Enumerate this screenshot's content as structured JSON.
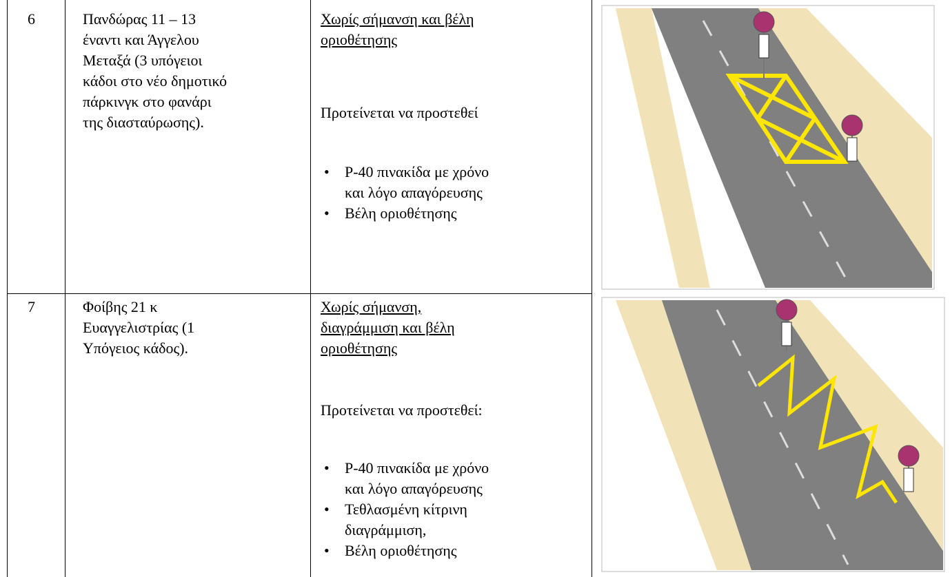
{
  "table": {
    "rows": [
      {
        "number": "6",
        "location": [
          "Πανδώρας 11 – 13",
          "έναντι και Άγγελου",
          "Μεταξά (3 υπόγειοι",
          "κάδοι στο νέο δημοτικό",
          "πάρκινγκ στο φανάρι",
          "της διασταύρωσης)."
        ],
        "status": [
          "Χωρίς σήμανση και βέλη",
          "οριοθέτησης"
        ],
        "proposal": "Προτείνεται να προστεθεί",
        "items": [
          [
            "Ρ-40 πινακίδα με χρόνο",
            "και λόγο απαγόρευσης"
          ],
          [
            "Βέλη οριοθέτησης"
          ]
        ]
      },
      {
        "number": "7",
        "location": [
          "Φοίβης 21 κ",
          "Ευαγγελιστρίας (1",
          "Υπόγειος κάδος)."
        ],
        "status": [
          "Χωρίς σήμανση,",
          "διαγράμμιση και βέλη",
          "οριοθέτησης"
        ],
        "proposal": "Προτείνεται να προστεθεί:",
        "items": [
          [
            "Ρ-40 πινακίδα με χρόνο",
            "και λόγο απαγόρευσης"
          ],
          [
            "Τεθλασμένη κίτρινη",
            "διαγράμμιση,"
          ],
          [
            "Βέλη οριοθέτησης"
          ]
        ]
      }
    ]
  }
}
